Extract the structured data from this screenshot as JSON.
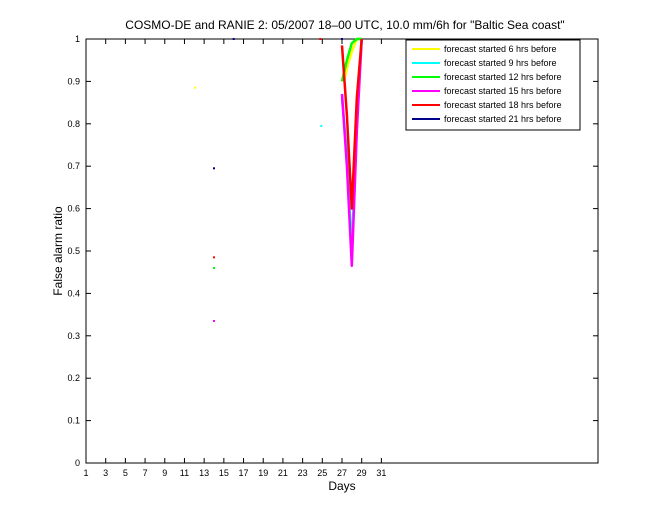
{
  "chart_data": {
    "type": "line",
    "title": "COSMO-DE and RANIE 2: 05/2007 18–00 UTC, 10.0 mm/6h for \"Baltic Sea coast\"",
    "xlabel": "Days",
    "ylabel": "False alarm ratio",
    "xlim": [
      1,
      53
    ],
    "ylim": [
      0,
      1
    ],
    "x_ticks": [
      1,
      3,
      5,
      7,
      9,
      11,
      13,
      15,
      17,
      19,
      21,
      23,
      25,
      27,
      29,
      31
    ],
    "y_ticks": [
      0,
      0.1,
      0.2,
      0.3,
      0.4,
      0.5,
      0.6,
      0.7,
      0.8,
      0.9,
      1
    ],
    "y_tick_labels": [
      "0",
      "0.1",
      "0.2",
      "0.3",
      "0.4",
      "0.5",
      "0.6",
      "0.7",
      "0.8",
      "0.9",
      "1"
    ],
    "legend_position": "top-right",
    "series": [
      {
        "name": "forecast started 6 hrs before",
        "color": "#ffff00",
        "points": [
          [
            12.1,
            0.885
          ],
          [
            27.2,
            0.9
          ],
          [
            27.6,
            0.94
          ],
          [
            28.0,
            0.97
          ],
          [
            28.5,
            1.0
          ],
          [
            29.0,
            1.0
          ]
        ]
      },
      {
        "name": "forecast started 9 hrs before",
        "color": "#00ffff",
        "points": [
          [
            24.9,
            0.795
          ],
          [
            27.0,
            0.86
          ],
          [
            27.5,
            0.73
          ],
          [
            28.0,
            0.5
          ],
          [
            28.5,
            0.8
          ],
          [
            29.0,
            1.0
          ]
        ]
      },
      {
        "name": "forecast started 12 hrs before",
        "color": "#00ff00",
        "points": [
          [
            14.0,
            0.46
          ],
          [
            27.0,
            0.9
          ],
          [
            27.5,
            0.95
          ],
          [
            28.0,
            0.99
          ],
          [
            28.5,
            1.0
          ],
          [
            29.0,
            1.0
          ]
        ]
      },
      {
        "name": "forecast started 15 hrs before",
        "color": "#ff00ff",
        "points": [
          [
            14.0,
            0.335
          ],
          [
            27.0,
            0.87
          ],
          [
            27.5,
            0.7
          ],
          [
            28.0,
            0.465
          ],
          [
            28.5,
            0.78
          ],
          [
            29.0,
            1.0
          ]
        ]
      },
      {
        "name": "forecast started 18 hrs before",
        "color": "#ff0000",
        "points": [
          [
            14.0,
            0.485
          ],
          [
            24.8,
            1.0
          ],
          [
            27.0,
            0.985
          ],
          [
            27.5,
            0.82
          ],
          [
            28.0,
            0.6
          ],
          [
            28.5,
            0.86
          ],
          [
            29.0,
            1.0
          ]
        ]
      },
      {
        "name": "forecast started 21 hrs before",
        "color": "#00008b",
        "points": [
          [
            14.0,
            0.695
          ],
          [
            16.0,
            1.0
          ],
          [
            27.0,
            1.0
          ]
        ]
      }
    ]
  }
}
